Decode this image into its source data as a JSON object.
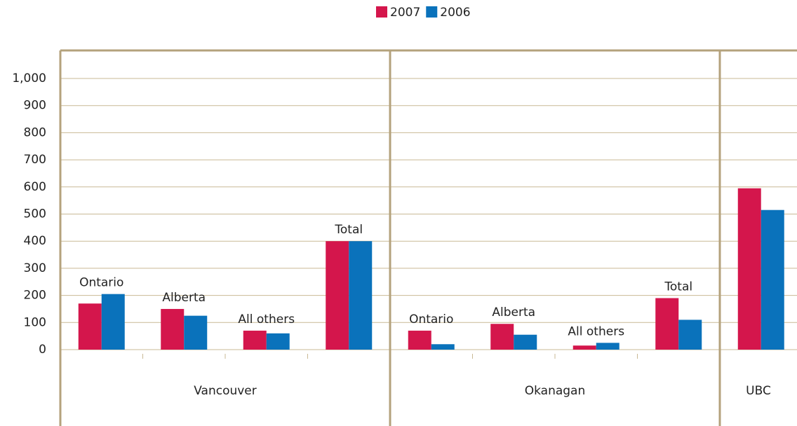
{
  "chart_data": {
    "type": "bar",
    "categories": [
      "Ontario",
      "Alberta",
      "All others",
      "Total",
      "Ontario",
      "Alberta",
      "All others",
      "Total",
      null
    ],
    "groups": [
      {
        "label": "Vancouver",
        "span": 4
      },
      {
        "label": "Okanagan",
        "span": 4
      },
      {
        "label": "UBC",
        "span": 1
      }
    ],
    "series": [
      {
        "name": "2007",
        "color": "#d4164c",
        "values": [
          170,
          150,
          70,
          400,
          70,
          95,
          15,
          190,
          595
        ]
      },
      {
        "name": "2006",
        "color": "#0a72bb",
        "values": [
          205,
          125,
          60,
          400,
          20,
          55,
          25,
          110,
          515
        ]
      }
    ],
    "ylim": [
      0,
      1000
    ],
    "yticks": [
      0,
      100,
      200,
      300,
      400,
      500,
      600,
      700,
      800,
      900,
      {
        "value": 1000,
        "label": "1,000"
      }
    ],
    "grid": true,
    "legend": "top"
  }
}
